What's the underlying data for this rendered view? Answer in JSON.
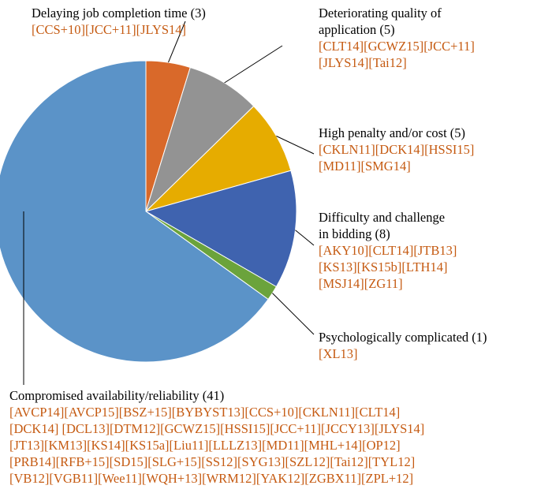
{
  "chart_data": {
    "type": "pie",
    "start_angle_deg": 0,
    "direction": "clockwise",
    "total": 63,
    "slices": [
      {
        "name": "Delaying job completion time (3)",
        "value": 3,
        "color": "#d9692a",
        "refs": [
          "[CCS+10][JCC+11][JLYS14]"
        ]
      },
      {
        "name": "Deteriorating quality of application (5)",
        "value": 5,
        "color": "#939393",
        "name_lines": [
          "Deteriorating quality of",
          "application (5)"
        ],
        "refs": [
          "[CLT14][GCWZ15][JCC+11]",
          "[JLYS14][Tai12]"
        ]
      },
      {
        "name": "High penalty and/or cost (5)",
        "value": 5,
        "color": "#e6ac00",
        "refs": [
          "[CKLN11][DCK14][HSSI15]",
          "[MD11][SMG14]"
        ]
      },
      {
        "name": "Difficulty and challenge in bidding (8)",
        "value": 8,
        "color": "#3f63af",
        "name_lines": [
          "Difficulty and challenge",
          "in bidding (8)"
        ],
        "refs": [
          "[AKY10][CLT14][JTB13]",
          "[KS13][KS15b][LTH14]",
          "[MSJ14][ZG11]"
        ]
      },
      {
        "name": "Psychologically complicated (1)",
        "value": 1,
        "color": "#6ba33c",
        "refs": [
          "[XL13]"
        ]
      },
      {
        "name": "Compromised availability/reliability (41)",
        "value": 41,
        "color": "#5b93c8",
        "refs": [
          "[AVCP14][AVCP15][BSZ+15][BYBYST13][CCS+10][CKLN11][CLT14]",
          "[DCK14] [DCL13][DTM12][GCWZ15][HSSI15][JCC+11][JCCY13][JLYS14]",
          "[JT13][KM13][KS14][KS15a][Liu11][LLLZ13][MD11][MHL+14][OP12]",
          "[PRB14][RFB+15][SD15][SLG+15][SS12][SYG13][SZL12][Tai12][TYL12]",
          "[VB12][VGB11][Wee11][WQH+13][WRM12][YAK12][ZGBX11][ZPL+12]"
        ]
      }
    ]
  }
}
